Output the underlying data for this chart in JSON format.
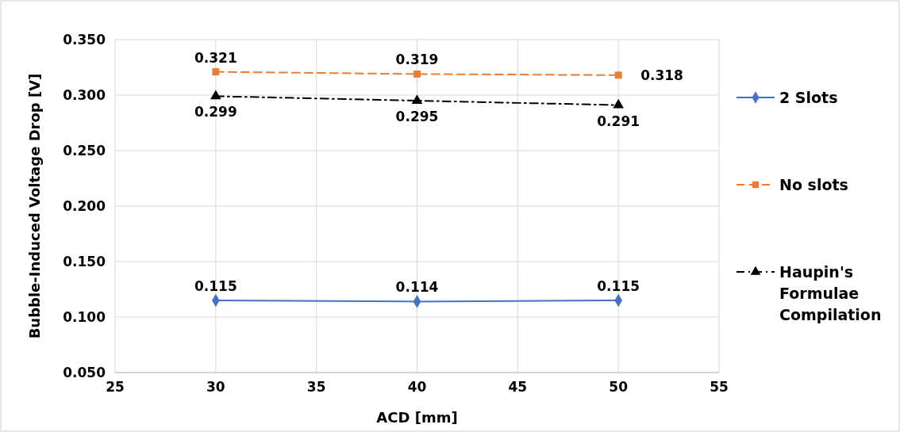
{
  "chart_data": {
    "type": "line",
    "xlabel": "ACD [mm]",
    "ylabel": "Bubble-Induced Voltage Drop [V]",
    "x": [
      30,
      40,
      50
    ],
    "series": [
      {
        "name": "2 Slots",
        "color": "#4472c4",
        "values": [
          0.115,
          0.114,
          0.115
        ],
        "marker": "diamond",
        "line_style": "solid"
      },
      {
        "name": "No slots",
        "color": "#ed7d31",
        "values": [
          0.321,
          0.319,
          0.318
        ],
        "marker": "square",
        "line_style": "dashed"
      },
      {
        "name": "Haupin's Formulae Compilation",
        "color": "#000000",
        "values": [
          0.299,
          0.295,
          0.291
        ],
        "marker": "triangle",
        "line_style": "dashdot"
      }
    ],
    "xlim": [
      25,
      55
    ],
    "xticks": [
      25,
      30,
      35,
      40,
      45,
      50,
      55
    ],
    "ylim": [
      0.05,
      0.35
    ],
    "yticks": [
      {
        "value": 0.05,
        "label": "0.050"
      },
      {
        "value": 0.1,
        "label": "0.100"
      },
      {
        "value": 0.15,
        "label": "0.150"
      },
      {
        "value": 0.2,
        "label": "0.200"
      },
      {
        "value": 0.25,
        "label": "0.250"
      },
      {
        "value": 0.3,
        "label": "0.300"
      },
      {
        "value": 0.35,
        "label": "0.350"
      }
    ],
    "grid": true,
    "legend": "right",
    "data_labels": true
  }
}
